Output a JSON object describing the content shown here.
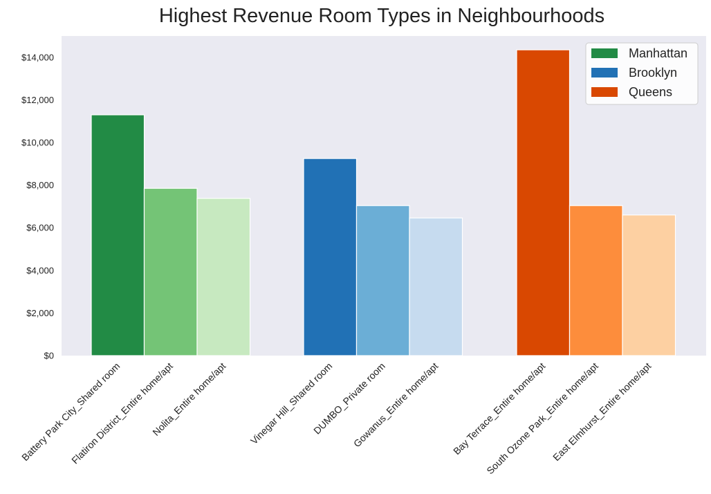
{
  "chart_data": {
    "type": "bar",
    "title": "Highest Revenue Room Types in Neighbourhoods",
    "xlabel": "",
    "ylabel": "",
    "ylim": [
      0,
      15000
    ],
    "yticks": [
      0,
      2000,
      4000,
      6000,
      8000,
      10000,
      12000,
      14000
    ],
    "ytick_labels": [
      "$0",
      "$2,000",
      "$4,000",
      "$6,000",
      "$8,000",
      "$10,000",
      "$12,000",
      "$14,000"
    ],
    "grid": false,
    "legend_position": "top-right",
    "legend": [
      {
        "label": "Manhattan",
        "color": "#228b45"
      },
      {
        "label": "Brooklyn",
        "color": "#2171b5"
      },
      {
        "label": "Queens",
        "color": "#d94801"
      }
    ],
    "groups": [
      {
        "name": "Manhattan",
        "bars": [
          {
            "label": "Battery Park City_Shared room",
            "value": 11300,
            "color": "#228b45"
          },
          {
            "label": "Flatiron District_Entire home/apt",
            "value": 7850,
            "color": "#74c476"
          },
          {
            "label": "Nolita_Entire home/apt",
            "value": 7380,
            "color": "#c7e9c0"
          }
        ]
      },
      {
        "name": "Brooklyn",
        "bars": [
          {
            "label": "Vinegar Hill_Shared room",
            "value": 9250,
            "color": "#2171b5"
          },
          {
            "label": "DUMBO_Private room",
            "value": 7040,
            "color": "#6baed6"
          },
          {
            "label": "Gowanus_Entire home/apt",
            "value": 6460,
            "color": "#c6dbef"
          }
        ]
      },
      {
        "name": "Queens",
        "bars": [
          {
            "label": "Bay Terrace_Entire home/apt",
            "value": 14350,
            "color": "#d94801"
          },
          {
            "label": "South Ozone Park_Entire home/apt",
            "value": 7040,
            "color": "#fd8d3c"
          },
          {
            "label": "East Elmhurst_Entire home/apt",
            "value": 6600,
            "color": "#fdd0a2"
          }
        ]
      }
    ],
    "colors": {
      "plot_background": "#eaeaf2",
      "bar_edge": "#ffffff"
    }
  }
}
